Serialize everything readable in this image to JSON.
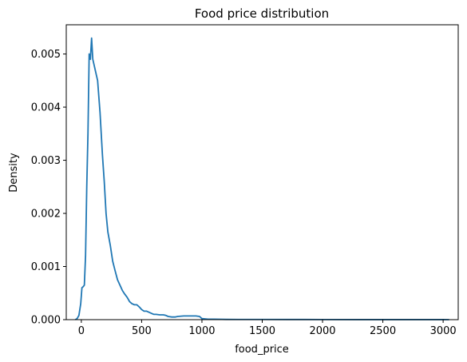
{
  "chart_data": {
    "type": "line",
    "title": "Food price distribution",
    "xlabel": "food_price",
    "ylabel": "Density",
    "xlim": [
      -125,
      3125
    ],
    "ylim": [
      0,
      0.00555
    ],
    "xticks": [
      0,
      500,
      1000,
      1500,
      2000,
      2500,
      3000
    ],
    "xtick_labels": [
      "0",
      "500",
      "1000",
      "1500",
      "2000",
      "2500",
      "3000"
    ],
    "yticks": [
      0,
      0.001,
      0.002,
      0.003,
      0.004,
      0.005
    ],
    "ytick_labels": [
      "0.000",
      "0.001",
      "0.002",
      "0.003",
      "0.004",
      "0.005"
    ],
    "grid": false,
    "line_color": "#1f77b4",
    "series": [
      {
        "x": [
          -50,
          -35,
          -20,
          -5,
          5,
          15,
          25,
          35,
          45,
          55,
          65,
          75,
          85,
          95,
          105,
          115,
          125,
          135,
          145,
          155,
          165,
          175,
          190,
          205,
          220,
          240,
          260,
          280,
          300,
          320,
          340,
          360,
          380,
          400,
          420,
          440,
          460,
          480,
          500,
          520,
          540,
          560,
          580,
          600,
          620,
          650,
          680,
          700,
          720,
          750,
          780,
          800,
          850,
          900,
          950,
          980,
          1000,
          1050,
          1100,
          1200,
          1300,
          1500,
          1700,
          2000,
          2300,
          2500,
          2700,
          2900,
          3000,
          3050
        ],
        "y": [
          0.0,
          2e-05,
          8e-05,
          0.0003,
          0.0006,
          0.00062,
          0.00065,
          0.0012,
          0.0025,
          0.0035,
          0.005,
          0.0049,
          0.0053,
          0.0049,
          0.0048,
          0.0047,
          0.0046,
          0.0045,
          0.0042,
          0.0039,
          0.0035,
          0.0031,
          0.0026,
          0.002,
          0.00165,
          0.0014,
          0.0011,
          0.00092,
          0.00075,
          0.00065,
          0.00055,
          0.00048,
          0.00042,
          0.00034,
          0.0003,
          0.00028,
          0.00028,
          0.00024,
          0.00019,
          0.00016,
          0.00016,
          0.00014,
          0.00012,
          0.0001,
          0.0001,
          9e-05,
          9e-05,
          8e-05,
          6e-05,
          5e-05,
          5e-05,
          6e-05,
          7e-05,
          7e-05,
          7e-05,
          6e-05,
          2e-05,
          1e-05,
          1e-05,
          5e-06,
          4e-06,
          4e-06,
          3e-06,
          2e-06,
          1e-06,
          1e-06,
          1e-06,
          1e-06,
          1e-06,
          0.0
        ]
      }
    ]
  }
}
